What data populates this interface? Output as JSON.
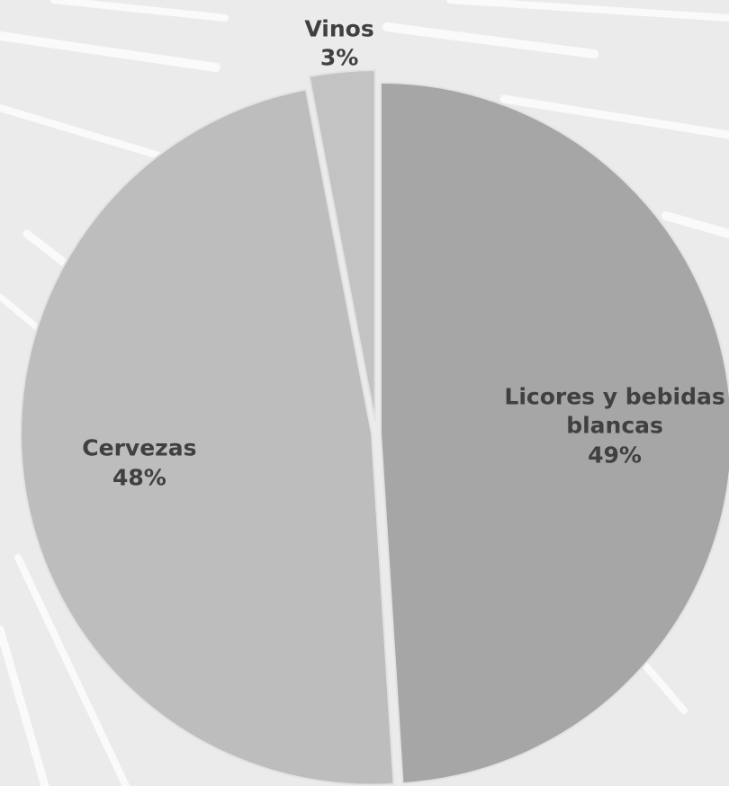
{
  "chart_data": {
    "type": "pie",
    "categories": [
      "Licores y bebidas blancas",
      "Cervezas",
      "Vinos"
    ],
    "values": [
      49,
      48,
      3
    ],
    "value_labels": [
      "49%",
      "48%",
      "3%"
    ],
    "colors": [
      "#a6a6a6",
      "#bdbdbd",
      "#c3c3c3"
    ]
  }
}
